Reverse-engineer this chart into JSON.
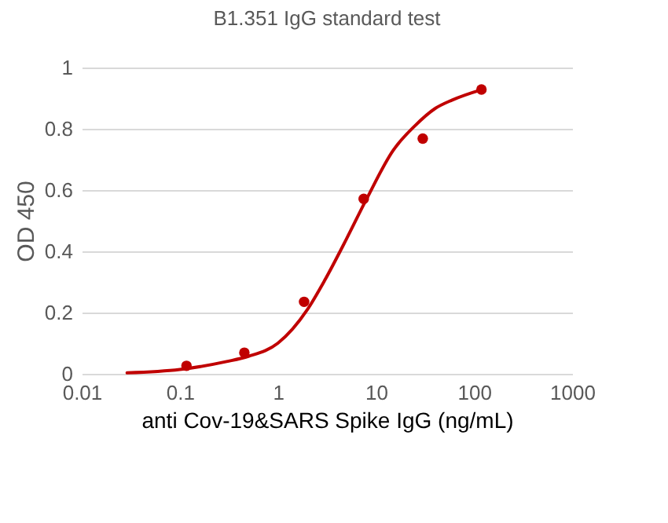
{
  "chart_data": {
    "type": "scatter",
    "title": "B1.351 IgG standard test",
    "xlabel": "anti Cov-19&SARS Spike IgG (ng/mL)",
    "ylabel": "OD 450",
    "log": "x",
    "xlim": [
      0.01,
      1000
    ],
    "xticks": [
      0.01,
      0.1,
      1,
      10,
      100,
      1000
    ],
    "ylim": [
      0,
      1
    ],
    "yticks": [
      0,
      0.2,
      0.4,
      0.6,
      0.8,
      1
    ],
    "grid": "y",
    "series": [
      {
        "type": "line",
        "color": "#c00000",
        "line_style": "solid",
        "marker": "none",
        "x": [
          0.029,
          0.1,
          0.3,
          0.5,
          1,
          2,
          3,
          5,
          8,
          15,
          25,
          40,
          60,
          120
        ],
        "values": [
          0.003,
          0.014,
          0.04,
          0.057,
          0.1,
          0.21,
          0.305,
          0.44,
          0.57,
          0.73,
          0.81,
          0.866,
          0.894,
          0.928
        ]
      },
      {
        "color": "#c00000",
        "marker": "circle",
        "x": [
          0.117,
          0.455,
          1.85,
          7.5,
          30,
          119
        ],
        "values": [
          0.026,
          0.069,
          0.235,
          0.571,
          0.768,
          0.928
        ]
      }
    ]
  }
}
